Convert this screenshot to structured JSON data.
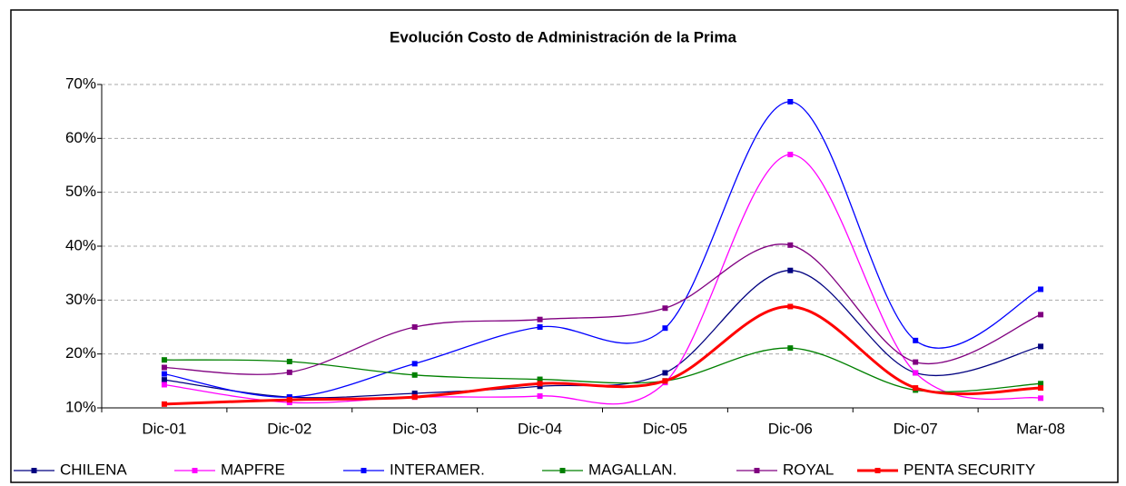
{
  "chart_data": {
    "type": "line",
    "title": "Evolución Costo de Administración de la Prima",
    "categories": [
      "Dic-01",
      "Dic-02",
      "Dic-03",
      "Dic-04",
      "Dic-05",
      "Dic-06",
      "Dic-07",
      "Mar-08"
    ],
    "series": [
      {
        "name": "CHILENA",
        "color": "#000080",
        "values": [
          15.2,
          12,
          12.7,
          14,
          16.5,
          35.5,
          16.5,
          21.4
        ]
      },
      {
        "name": "MAPFRE",
        "color": "#ff00ff",
        "values": [
          14.3,
          11,
          12,
          12.2,
          14.7,
          57,
          16.5,
          11.8
        ]
      },
      {
        "name": "INTERAMER.",
        "color": "#0000ff",
        "values": [
          16.3,
          12,
          18.2,
          25,
          24.8,
          66.8,
          22.5,
          32
        ]
      },
      {
        "name": "MAGALLAN.",
        "color": "#008000",
        "values": [
          18.9,
          18.6,
          16.1,
          15.3,
          15,
          21.1,
          13.3,
          14.5
        ]
      },
      {
        "name": "ROYAL",
        "color": "#800080",
        "values": [
          17.5,
          16.6,
          25,
          26.4,
          28.5,
          40.2,
          18.5,
          27.3
        ]
      },
      {
        "name": "PENTA SECURITY",
        "color": "#ff0000",
        "values": [
          10.7,
          11.5,
          12,
          14.5,
          15,
          28.8,
          13.7,
          13.7
        ]
      }
    ],
    "ylim": [
      10,
      70
    ],
    "yticks": [
      {
        "value": 10,
        "label": "10%"
      },
      {
        "value": 20,
        "label": "20%"
      },
      {
        "value": 30,
        "label": "30%"
      },
      {
        "value": 40,
        "label": "40%"
      },
      {
        "value": 50,
        "label": "50%"
      },
      {
        "value": 60,
        "label": "60%"
      },
      {
        "value": 70,
        "label": "70%"
      }
    ],
    "grid": true,
    "legend": "bottom"
  }
}
